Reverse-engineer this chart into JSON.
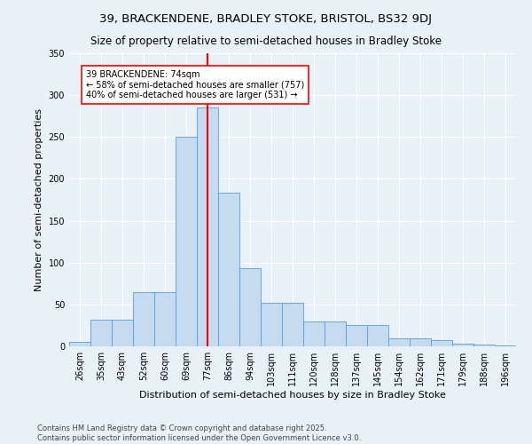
{
  "title_line1": "39, BRACKENDENE, BRADLEY STOKE, BRISTOL, BS32 9DJ",
  "title_line2": "Size of property relative to semi-detached houses in Bradley Stoke",
  "xlabel": "Distribution of semi-detached houses by size in Bradley Stoke",
  "ylabel": "Number of semi-detached properties",
  "bin_labels": [
    "26sqm",
    "35sqm",
    "43sqm",
    "52sqm",
    "60sqm",
    "69sqm",
    "77sqm",
    "86sqm",
    "94sqm",
    "103sqm",
    "111sqm",
    "120sqm",
    "128sqm",
    "137sqm",
    "145sqm",
    "154sqm",
    "162sqm",
    "171sqm",
    "179sqm",
    "188sqm",
    "196sqm"
  ],
  "bar_values": [
    5,
    32,
    32,
    65,
    65,
    250,
    285,
    183,
    93,
    52,
    52,
    30,
    30,
    25,
    25,
    10,
    10,
    7,
    3,
    2,
    1
  ],
  "bar_color": "#C5DCF0",
  "bar_edge_color": "#5B9BD5",
  "vline_x": 6,
  "vline_color": "red",
  "annotation_text": "39 BRACKENDENE: 74sqm\n← 58% of semi-detached houses are smaller (757)\n40% of semi-detached houses are larger (531) →",
  "annotation_box_color": "white",
  "annotation_box_edge": "red",
  "ylim": [
    0,
    350
  ],
  "yticks": [
    0,
    50,
    100,
    150,
    200,
    250,
    300,
    350
  ],
  "footer_line1": "Contains HM Land Registry data © Crown copyright and database right 2025.",
  "footer_line2": "Contains public sector information licensed under the Open Government Licence v3.0.",
  "bg_color": "#E8F0F8",
  "title1_fontsize": 9.5,
  "title2_fontsize": 8.5,
  "xlabel_fontsize": 8,
  "ylabel_fontsize": 8,
  "tick_fontsize": 7,
  "footer_fontsize": 6
}
